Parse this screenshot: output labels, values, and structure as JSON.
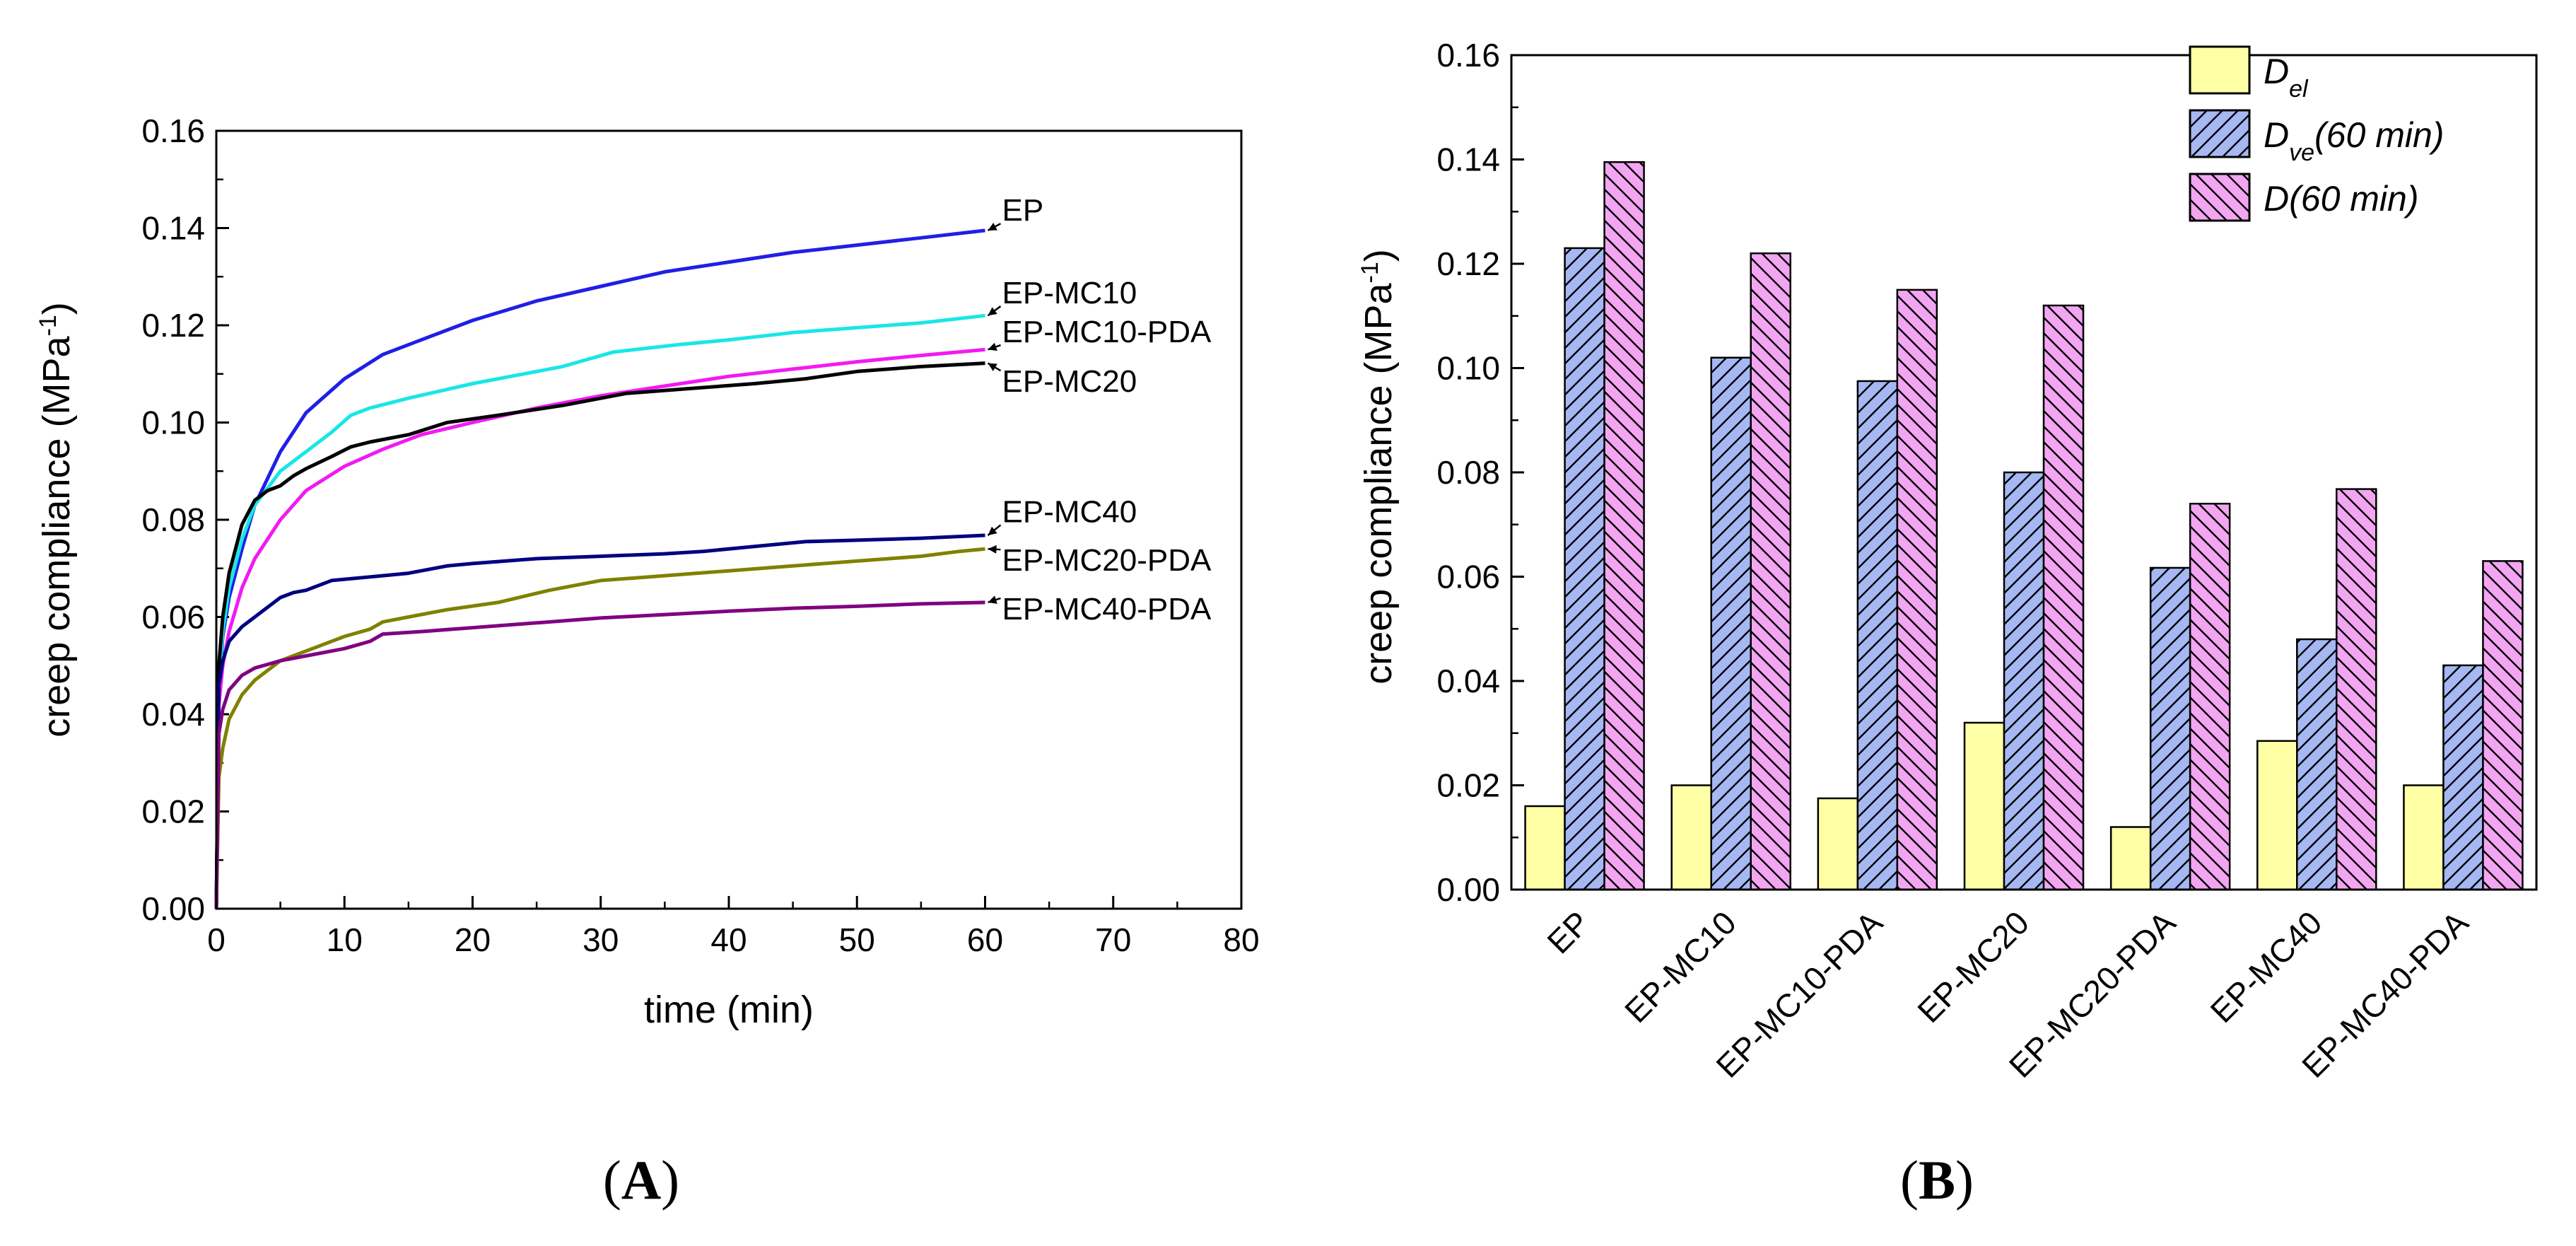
{
  "figure": {
    "panels": [
      {
        "label_open": "(",
        "letter": "A",
        "label_close": ")"
      },
      {
        "label_open": "(",
        "letter": "B",
        "label_close": ")"
      }
    ]
  },
  "chart_data": [
    {
      "type": "line",
      "panel": "A",
      "xlabel": "time (min)",
      "ylabel": {
        "main": "creep compliance (MPa",
        "sup": "-1",
        "close": ")"
      },
      "xlim": [
        0,
        80
      ],
      "ylim": [
        0,
        0.16
      ],
      "xticks": [
        "0",
        "10",
        "20",
        "30",
        "40",
        "50",
        "60",
        "70",
        "80"
      ],
      "yticks": [
        "0.00",
        "0.02",
        "0.04",
        "0.06",
        "0.08",
        "0.10",
        "0.12",
        "0.14",
        "0.16"
      ],
      "series": [
        {
          "name": "EP",
          "color": "#1f1fe6",
          "x": [
            0,
            0.2,
            0.5,
            1,
            2,
            3,
            5,
            7,
            10,
            13,
            16,
            20,
            25,
            30,
            35,
            40,
            45,
            50,
            55,
            60
          ],
          "y": [
            0,
            0.045,
            0.056,
            0.064,
            0.074,
            0.083,
            0.094,
            0.102,
            0.109,
            0.114,
            0.117,
            0.121,
            0.125,
            0.128,
            0.131,
            0.133,
            0.135,
            0.1365,
            0.138,
            0.1395
          ]
        },
        {
          "name": "EP-MC10",
          "color": "#19e6e6",
          "x": [
            0,
            0.2,
            0.5,
            1,
            2,
            3,
            5,
            7,
            9,
            10.5,
            12,
            15,
            20,
            25,
            27,
            31,
            36,
            40,
            45,
            50,
            55,
            60
          ],
          "y": [
            0,
            0.047,
            0.057,
            0.066,
            0.076,
            0.083,
            0.09,
            0.094,
            0.098,
            0.1015,
            0.103,
            0.105,
            0.108,
            0.1105,
            0.1115,
            0.1145,
            0.116,
            0.117,
            0.1185,
            0.1195,
            0.1205,
            0.122
          ]
        },
        {
          "name": "EP-MC10-PDA",
          "color": "#f21af2",
          "x": [
            0,
            0.2,
            0.5,
            1,
            2,
            3,
            5,
            7,
            10,
            13,
            16,
            20,
            25,
            30,
            35,
            40,
            45,
            50,
            55,
            60
          ],
          "y": [
            0,
            0.042,
            0.05,
            0.057,
            0.066,
            0.072,
            0.08,
            0.086,
            0.091,
            0.0945,
            0.0975,
            0.1,
            0.103,
            0.1055,
            0.1075,
            0.1095,
            0.111,
            0.1125,
            0.1138,
            0.115
          ]
        },
        {
          "name": "EP-MC20",
          "color": "#000000",
          "x": [
            0,
            0.2,
            0.5,
            1,
            2,
            3,
            4,
            5,
            6,
            7,
            9,
            10.5,
            12,
            15,
            18,
            22,
            27,
            32,
            37,
            42,
            46,
            50,
            55,
            60
          ],
          "y": [
            0,
            0.05,
            0.06,
            0.069,
            0.079,
            0.084,
            0.086,
            0.087,
            0.089,
            0.0905,
            0.093,
            0.095,
            0.096,
            0.0975,
            0.1,
            0.1015,
            0.1035,
            0.106,
            0.107,
            0.108,
            0.109,
            0.1105,
            0.1115,
            0.1122
          ]
        },
        {
          "name": "EP-MC40",
          "color": "#000080",
          "x": [
            0,
            0.2,
            0.5,
            1,
            2,
            3,
            4,
            5,
            6,
            7,
            9,
            11,
            13,
            15,
            18,
            20,
            25,
            30,
            35,
            38,
            42,
            46,
            50,
            55,
            60
          ],
          "y": [
            0,
            0.046,
            0.051,
            0.055,
            0.058,
            0.06,
            0.062,
            0.064,
            0.065,
            0.0655,
            0.0675,
            0.068,
            0.0685,
            0.069,
            0.0705,
            0.071,
            0.072,
            0.0725,
            0.073,
            0.0735,
            0.0745,
            0.0755,
            0.0758,
            0.0762,
            0.0768
          ]
        },
        {
          "name": "EP-MC20-PDA",
          "color": "#808000",
          "x": [
            0,
            0.2,
            0.5,
            1,
            2,
            3,
            4,
            5,
            6,
            8,
            10,
            12,
            13,
            15,
            18,
            22,
            26,
            30,
            35,
            40,
            45,
            50,
            55,
            58,
            60
          ],
          "y": [
            0,
            0.027,
            0.033,
            0.039,
            0.044,
            0.047,
            0.049,
            0.051,
            0.052,
            0.054,
            0.056,
            0.0575,
            0.059,
            0.06,
            0.0615,
            0.063,
            0.0655,
            0.0675,
            0.0685,
            0.0695,
            0.0705,
            0.0715,
            0.0725,
            0.0735,
            0.074
          ]
        },
        {
          "name": "EP-MC40-PDA",
          "color": "#800080",
          "x": [
            0,
            0.2,
            0.5,
            1,
            2,
            3,
            5,
            7,
            10,
            12,
            13,
            16,
            20,
            25,
            30,
            35,
            40,
            45,
            50,
            55,
            60
          ],
          "y": [
            0,
            0.036,
            0.041,
            0.045,
            0.048,
            0.0495,
            0.051,
            0.052,
            0.0535,
            0.055,
            0.0565,
            0.057,
            0.0578,
            0.0588,
            0.0598,
            0.0605,
            0.0612,
            0.0618,
            0.0622,
            0.0627,
            0.063
          ]
        }
      ]
    },
    {
      "type": "bar",
      "panel": "B",
      "ylabel": {
        "main": "creep compliance (MPa",
        "sup": "-1",
        "close": ")"
      },
      "ylim": [
        0,
        0.16
      ],
      "yticks": [
        "0.00",
        "0.02",
        "0.04",
        "0.06",
        "0.08",
        "0.10",
        "0.12",
        "0.14",
        "0.16"
      ],
      "categories": [
        "EP",
        "EP-MC10",
        "EP-MC10-PDA",
        "EP-MC20",
        "EP-MC20-PDA",
        "EP-MC40",
        "EP-MC40-PDA"
      ],
      "series": [
        {
          "name": "D_el",
          "legend_main": "D",
          "legend_sub": "el",
          "legend_rest": "",
          "fill": "#ffffa6",
          "hatch": "none",
          "values": [
            0.016,
            0.02,
            0.0175,
            0.032,
            0.012,
            0.0285,
            0.02
          ]
        },
        {
          "name": "D_ve(60 min)",
          "legend_main": "D",
          "legend_sub": "ve",
          "legend_rest": "(60 min)",
          "fill": "#a6b8f2",
          "hatch": "forward",
          "values": [
            0.123,
            0.102,
            0.0975,
            0.08,
            0.0617,
            0.048,
            0.043
          ]
        },
        {
          "name": "D(60 min)",
          "legend_main": "D(60 min)",
          "legend_sub": "",
          "legend_rest": "",
          "fill": "#f2a6f2",
          "hatch": "backward",
          "values": [
            0.1395,
            0.122,
            0.115,
            0.112,
            0.074,
            0.0768,
            0.063
          ]
        }
      ]
    }
  ]
}
